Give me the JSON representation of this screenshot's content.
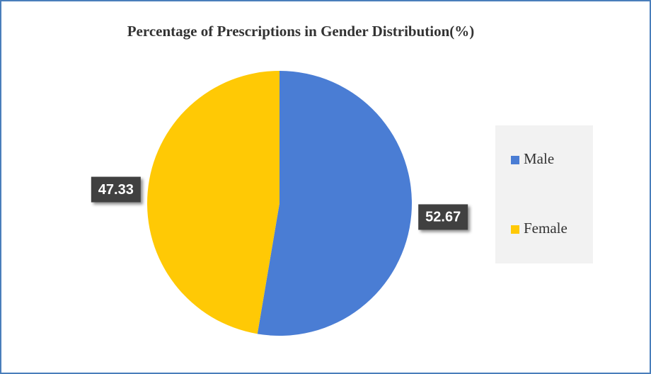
{
  "chart_data": {
    "type": "pie",
    "title": "Percentage of Prescriptions in Gender Distribution(%)",
    "categories": [
      "Male",
      "Female"
    ],
    "values": [
      52.67,
      47.33
    ],
    "colors": [
      "#4a7dd4",
      "#ffc905"
    ],
    "legend": "right"
  }
}
